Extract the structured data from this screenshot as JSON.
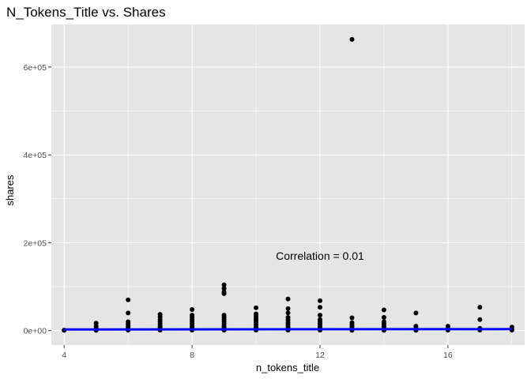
{
  "chart_data": {
    "type": "scatter",
    "title": "N_Tokens_Title  vs. Shares",
    "xlabel": "n_tokens_title",
    "ylabel": "shares",
    "xlim": [
      3.6,
      18.4
    ],
    "ylim": [
      -33000,
      697000
    ],
    "x_ticks": [
      4,
      8,
      12,
      16
    ],
    "x_tick_labels": [
      "4",
      "8",
      "12",
      "16"
    ],
    "x_minor_ticks": [
      6,
      10,
      14,
      18
    ],
    "y_ticks": [
      0,
      200000,
      400000,
      600000
    ],
    "y_tick_labels": [
      "0e+00",
      "2e+05",
      "4e+05",
      "6e+05"
    ],
    "y_minor_ticks": [
      100000,
      300000,
      500000
    ],
    "grid": true,
    "panel_background": "#e5e5e5",
    "grid_color": "#ffffff",
    "point_color": "#000000",
    "trend_line": {
      "color": "#0000ff",
      "x": [
        4,
        18
      ],
      "y": [
        2500,
        3300
      ]
    },
    "annotation": {
      "text": "Correlation = 0.01",
      "x": 12,
      "y": 170000
    },
    "points": [
      {
        "x": 4,
        "y": 1000
      },
      {
        "x": 4,
        "y": 500
      },
      {
        "x": 5,
        "y": 17000
      },
      {
        "x": 5,
        "y": 10000
      },
      {
        "x": 5,
        "y": 5000
      },
      {
        "x": 5,
        "y": 2000
      },
      {
        "x": 5,
        "y": 500
      },
      {
        "x": 6,
        "y": 70000
      },
      {
        "x": 6,
        "y": 40000
      },
      {
        "x": 6,
        "y": 20000
      },
      {
        "x": 6,
        "y": 15000
      },
      {
        "x": 6,
        "y": 10000
      },
      {
        "x": 6,
        "y": 6000
      },
      {
        "x": 6,
        "y": 3000
      },
      {
        "x": 6,
        "y": 1000
      },
      {
        "x": 7,
        "y": 37000
      },
      {
        "x": 7,
        "y": 31000
      },
      {
        "x": 7,
        "y": 25000
      },
      {
        "x": 7,
        "y": 20000
      },
      {
        "x": 7,
        "y": 15000
      },
      {
        "x": 7,
        "y": 10000
      },
      {
        "x": 7,
        "y": 6000
      },
      {
        "x": 7,
        "y": 3000
      },
      {
        "x": 7,
        "y": 1000
      },
      {
        "x": 8,
        "y": 48000
      },
      {
        "x": 8,
        "y": 35000
      },
      {
        "x": 8,
        "y": 30000
      },
      {
        "x": 8,
        "y": 25000
      },
      {
        "x": 8,
        "y": 20000
      },
      {
        "x": 8,
        "y": 15000
      },
      {
        "x": 8,
        "y": 10000
      },
      {
        "x": 8,
        "y": 6000
      },
      {
        "x": 8,
        "y": 3000
      },
      {
        "x": 8,
        "y": 1000
      },
      {
        "x": 9,
        "y": 104000
      },
      {
        "x": 9,
        "y": 96000
      },
      {
        "x": 9,
        "y": 88000
      },
      {
        "x": 9,
        "y": 84000
      },
      {
        "x": 9,
        "y": 35000
      },
      {
        "x": 9,
        "y": 30000
      },
      {
        "x": 9,
        "y": 25000
      },
      {
        "x": 9,
        "y": 20000
      },
      {
        "x": 9,
        "y": 15000
      },
      {
        "x": 9,
        "y": 10000
      },
      {
        "x": 9,
        "y": 6000
      },
      {
        "x": 9,
        "y": 3000
      },
      {
        "x": 9,
        "y": 1000
      },
      {
        "x": 10,
        "y": 52000
      },
      {
        "x": 10,
        "y": 38000
      },
      {
        "x": 10,
        "y": 33000
      },
      {
        "x": 10,
        "y": 28000
      },
      {
        "x": 10,
        "y": 23000
      },
      {
        "x": 10,
        "y": 18000
      },
      {
        "x": 10,
        "y": 13000
      },
      {
        "x": 10,
        "y": 8000
      },
      {
        "x": 10,
        "y": 4000
      },
      {
        "x": 10,
        "y": 1000
      },
      {
        "x": 11,
        "y": 72000
      },
      {
        "x": 11,
        "y": 50000
      },
      {
        "x": 11,
        "y": 40000
      },
      {
        "x": 11,
        "y": 30000
      },
      {
        "x": 11,
        "y": 24000
      },
      {
        "x": 11,
        "y": 18000
      },
      {
        "x": 11,
        "y": 13000
      },
      {
        "x": 11,
        "y": 8000
      },
      {
        "x": 11,
        "y": 4000
      },
      {
        "x": 11,
        "y": 1000
      },
      {
        "x": 12,
        "y": 68000
      },
      {
        "x": 12,
        "y": 53000
      },
      {
        "x": 12,
        "y": 35000
      },
      {
        "x": 12,
        "y": 25000
      },
      {
        "x": 12,
        "y": 20000
      },
      {
        "x": 12,
        "y": 15000
      },
      {
        "x": 12,
        "y": 10000
      },
      {
        "x": 12,
        "y": 6000
      },
      {
        "x": 12,
        "y": 3000
      },
      {
        "x": 12,
        "y": 1000
      },
      {
        "x": 13,
        "y": 663000
      },
      {
        "x": 13,
        "y": 29000
      },
      {
        "x": 13,
        "y": 18000
      },
      {
        "x": 13,
        "y": 13000
      },
      {
        "x": 13,
        "y": 9000
      },
      {
        "x": 13,
        "y": 5000
      },
      {
        "x": 13,
        "y": 2000
      },
      {
        "x": 13,
        "y": 500
      },
      {
        "x": 14,
        "y": 47000
      },
      {
        "x": 14,
        "y": 30000
      },
      {
        "x": 14,
        "y": 20000
      },
      {
        "x": 14,
        "y": 15000
      },
      {
        "x": 14,
        "y": 10000
      },
      {
        "x": 14,
        "y": 5000
      },
      {
        "x": 14,
        "y": 2000
      },
      {
        "x": 14,
        "y": 500
      },
      {
        "x": 15,
        "y": 40000
      },
      {
        "x": 15,
        "y": 10000
      },
      {
        "x": 15,
        "y": 5000
      },
      {
        "x": 15,
        "y": 2000
      },
      {
        "x": 15,
        "y": 500
      },
      {
        "x": 16,
        "y": 10000
      },
      {
        "x": 16,
        "y": 4000
      },
      {
        "x": 16,
        "y": 1000
      },
      {
        "x": 17,
        "y": 53000
      },
      {
        "x": 17,
        "y": 25000
      },
      {
        "x": 17,
        "y": 5000
      },
      {
        "x": 17,
        "y": 1000
      },
      {
        "x": 18,
        "y": 8000
      },
      {
        "x": 18,
        "y": 4000
      },
      {
        "x": 18,
        "y": 1000
      }
    ]
  }
}
